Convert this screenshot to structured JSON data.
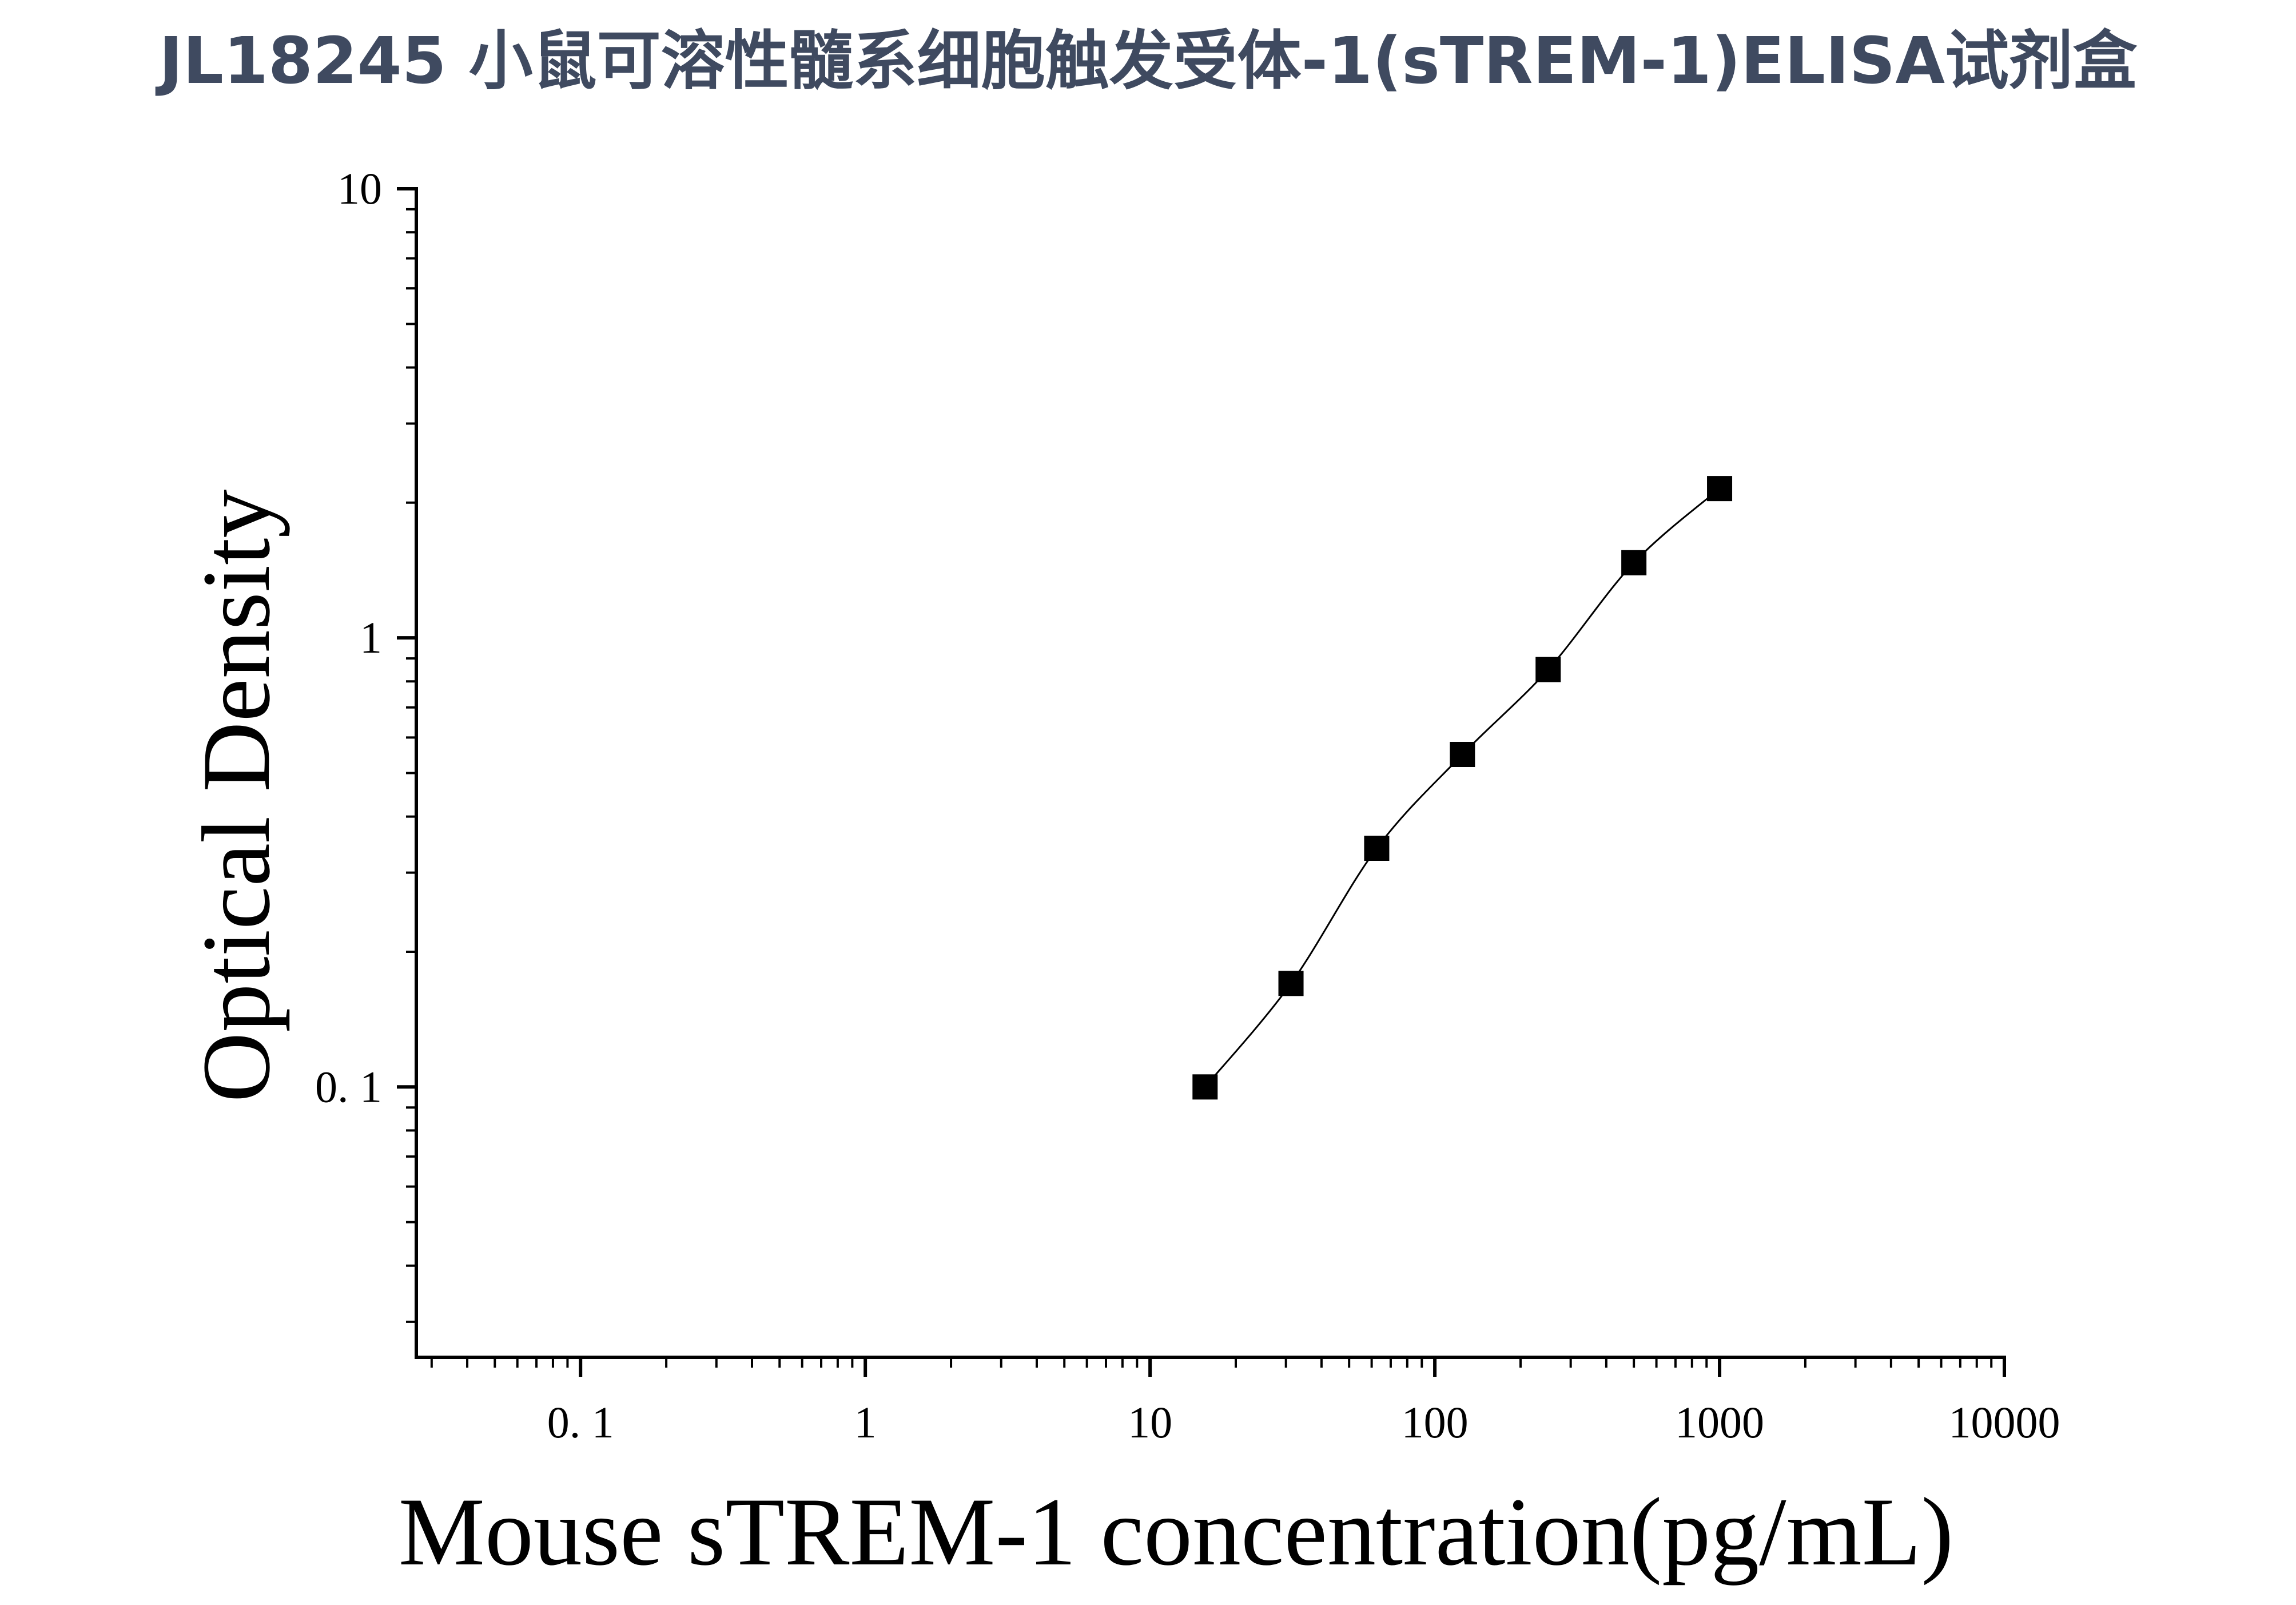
{
  "chart_data": {
    "type": "scatter",
    "title": "JL18245 小鼠可溶性髓系细胞触发受体-1(sTREM-1)ELISA试剂盒",
    "xlabel": "Mouse sTREM-1 concentration(pg/mL)",
    "ylabel": "Optical Density",
    "x_scale": "log",
    "y_scale": "log",
    "xlim": [
      0.0265,
      10000
    ],
    "ylim": [
      0.025,
      10
    ],
    "x_ticks": [
      0.1,
      1,
      10,
      100,
      1000,
      10000
    ],
    "x_tick_labels": [
      "0. 1",
      "1",
      "10",
      "100",
      "1000",
      "10000"
    ],
    "y_ticks": [
      0.1,
      1,
      10
    ],
    "y_tick_labels": [
      "0. 1",
      "1",
      "10"
    ],
    "grid": false,
    "legend": "none",
    "marker": "square",
    "marker_color": "#000000",
    "line_color": "#000000",
    "title_color": "#3f4a60",
    "series": [
      {
        "x": [
          15.6,
          31.25,
          62.5,
          125,
          250,
          500,
          1000
        ],
        "y": [
          0.1,
          0.17,
          0.34,
          0.55,
          0.85,
          1.47,
          2.15
        ]
      }
    ]
  }
}
